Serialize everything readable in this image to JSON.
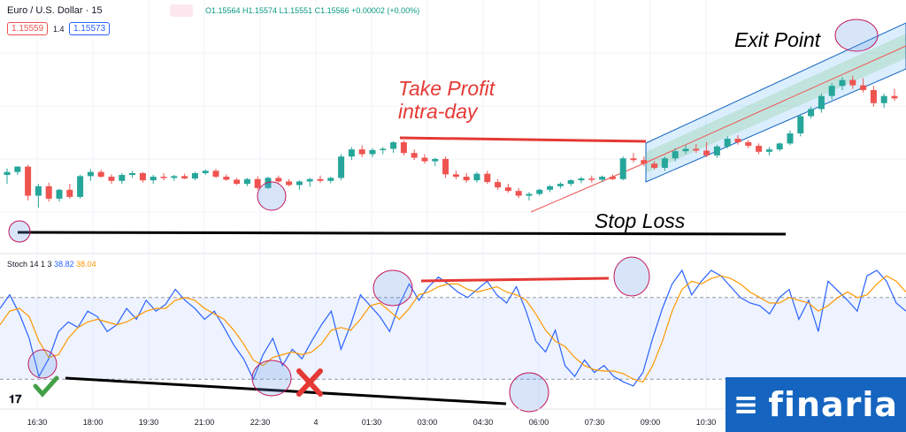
{
  "header": {
    "symbol": "Euro / U.S. Dollar · 15",
    "ohlc": "O1.15564 H1.15574 L1.15551 C1.15566 +0.00002 (+0.00%)",
    "bid": "1.15559",
    "spread": "1.4",
    "ask": "1.15573"
  },
  "stoch_header": {
    "name": "Stoch 14 1 3",
    "k": "38.82",
    "d": "38.04"
  },
  "annotations": {
    "take_profit_1": "Take Profit",
    "take_profit_2": "intra-day",
    "stop_loss": "Stop Loss",
    "exit_point": "Exit Point"
  },
  "colors": {
    "up": "#26a69a",
    "down": "#ef5350",
    "k_line": "#2962ff",
    "d_line": "#ff9800",
    "annotation_red": "#e53935",
    "channel": "#1565c0",
    "brand": "#1565c0"
  },
  "icons": [
    "check-icon",
    "cross-icon",
    "tradingview-logo"
  ],
  "brand": "finaria",
  "chart_data": [
    {
      "type": "candlestick",
      "title": "Euro / U.S. Dollar · 15",
      "ylim": [
        1.1545,
        1.1584
      ],
      "grid": true,
      "candles": [
        [
          1.15575,
          1.15586,
          1.1556,
          1.1558
        ],
        [
          1.1558,
          1.1559,
          1.15575,
          1.15589
        ],
        [
          1.15589,
          1.15592,
          1.15532,
          1.1554
        ],
        [
          1.1554,
          1.1556,
          1.1552,
          1.15556
        ],
        [
          1.15556,
          1.15562,
          1.1553,
          1.15535
        ],
        [
          1.15535,
          1.15552,
          1.1553,
          1.1555
        ],
        [
          1.1555,
          1.1556,
          1.15535,
          1.15538
        ],
        [
          1.15538,
          1.15575,
          1.15535,
          1.15573
        ],
        [
          1.15573,
          1.15585,
          1.15565,
          1.1558
        ],
        [
          1.1558,
          1.15584,
          1.1557,
          1.15572
        ],
        [
          1.15572,
          1.15576,
          1.1556,
          1.15565
        ],
        [
          1.15565,
          1.15578,
          1.1556,
          1.15575
        ],
        [
          1.15575,
          1.15582,
          1.1557,
          1.15578
        ],
        [
          1.15578,
          1.1558,
          1.15562,
          1.15566
        ],
        [
          1.15566,
          1.15575,
          1.1556,
          1.15572
        ],
        [
          1.15572,
          1.15578,
          1.15566,
          1.1557
        ],
        [
          1.1557,
          1.15575,
          1.15565,
          1.15573
        ],
        [
          1.15573,
          1.15577,
          1.15568,
          1.15569
        ],
        [
          1.15569,
          1.1558,
          1.15566,
          1.15578
        ],
        [
          1.15578,
          1.15584,
          1.15575,
          1.15582
        ],
        [
          1.15582,
          1.15585,
          1.1557,
          1.15572
        ],
        [
          1.15572,
          1.15576,
          1.15565,
          1.15567
        ],
        [
          1.15567,
          1.1557,
          1.15558,
          1.1556
        ],
        [
          1.1556,
          1.1557,
          1.15556,
          1.15568
        ],
        [
          1.15568,
          1.15573,
          1.1555,
          1.15553
        ],
        [
          1.15553,
          1.15572,
          1.15551,
          1.1557
        ],
        [
          1.1557,
          1.15574,
          1.15561,
          1.15564
        ],
        [
          1.15564,
          1.15568,
          1.15556,
          1.15558
        ],
        [
          1.15558,
          1.15566,
          1.1555,
          1.15564
        ],
        [
          1.15564,
          1.1557,
          1.15555,
          1.15568
        ],
        [
          1.15568,
          1.15574,
          1.15562,
          1.15565
        ],
        [
          1.15565,
          1.15572,
          1.15561,
          1.1557
        ],
        [
          1.1557,
          1.1561,
          1.15566,
          1.15606
        ],
        [
          1.15606,
          1.15622,
          1.156,
          1.15618
        ],
        [
          1.15618,
          1.15625,
          1.15605,
          1.1561
        ],
        [
          1.1561,
          1.1562,
          1.15605,
          1.15617
        ],
        [
          1.15617,
          1.15622,
          1.1561,
          1.15619
        ],
        [
          1.15619,
          1.15632,
          1.15612,
          1.1563
        ],
        [
          1.1563,
          1.15633,
          1.15608,
          1.15612
        ],
        [
          1.15612,
          1.15618,
          1.156,
          1.15604
        ],
        [
          1.15604,
          1.1561,
          1.15594,
          1.15598
        ],
        [
          1.15598,
          1.15604,
          1.1559,
          1.15602
        ],
        [
          1.15602,
          1.15606,
          1.1557,
          1.15576
        ],
        [
          1.15576,
          1.15582,
          1.15568,
          1.15572
        ],
        [
          1.15572,
          1.15578,
          1.15562,
          1.15566
        ],
        [
          1.15566,
          1.1558,
          1.15562,
          1.15577
        ],
        [
          1.15577,
          1.15582,
          1.1556,
          1.15563
        ],
        [
          1.15563,
          1.15568,
          1.1555,
          1.15554
        ],
        [
          1.15554,
          1.1556,
          1.15545,
          1.15548
        ],
        [
          1.15548,
          1.15553,
          1.15536,
          1.1554
        ],
        [
          1.1554,
          1.15546,
          1.15532,
          1.15543
        ],
        [
          1.15543,
          1.15552,
          1.1554,
          1.1555
        ],
        [
          1.1555,
          1.15558,
          1.15546,
          1.15556
        ],
        [
          1.15556,
          1.15563,
          1.15552,
          1.1556
        ],
        [
          1.1556,
          1.15568,
          1.15556,
          1.15566
        ],
        [
          1.15566,
          1.15572,
          1.15561,
          1.15569
        ],
        [
          1.15569,
          1.15574,
          1.15562,
          1.15567
        ],
        [
          1.15567,
          1.15574,
          1.15563,
          1.15572
        ],
        [
          1.15572,
          1.15576,
          1.15566,
          1.15568
        ],
        [
          1.15568,
          1.15606,
          1.15566,
          1.15603
        ],
        [
          1.15603,
          1.15612,
          1.15596,
          1.156
        ],
        [
          1.156,
          1.15606,
          1.1559,
          1.15594
        ],
        [
          1.15594,
          1.15598,
          1.15584,
          1.15587
        ],
        [
          1.15587,
          1.15606,
          1.15582,
          1.15603
        ],
        [
          1.15603,
          1.1562,
          1.15598,
          1.15615
        ],
        [
          1.15615,
          1.15625,
          1.1561,
          1.15619
        ],
        [
          1.15619,
          1.15627,
          1.15612,
          1.15616
        ],
        [
          1.15616,
          1.1563,
          1.15605,
          1.15608
        ],
        [
          1.15608,
          1.15626,
          1.15604,
          1.15623
        ],
        [
          1.15623,
          1.1564,
          1.1562,
          1.15636
        ],
        [
          1.15636,
          1.15642,
          1.15626,
          1.1563
        ],
        [
          1.1563,
          1.15634,
          1.1562,
          1.15624
        ],
        [
          1.15624,
          1.15628,
          1.1561,
          1.15614
        ],
        [
          1.15614,
          1.15622,
          1.15608,
          1.15618
        ],
        [
          1.15618,
          1.1563,
          1.15615,
          1.15628
        ],
        [
          1.15628,
          1.1565,
          1.15625,
          1.15645
        ],
        [
          1.15645,
          1.15678,
          1.1564,
          1.15674
        ],
        [
          1.15674,
          1.1569,
          1.1567,
          1.15686
        ],
        [
          1.15686,
          1.15712,
          1.1568,
          1.15708
        ],
        [
          1.15708,
          1.1573,
          1.15702,
          1.15725
        ],
        [
          1.15725,
          1.1574,
          1.15718,
          1.15735
        ],
        [
          1.15735,
          1.15742,
          1.1572,
          1.15726
        ],
        [
          1.15726,
          1.15738,
          1.15714,
          1.15718
        ],
        [
          1.15718,
          1.15725,
          1.1569,
          1.15696
        ],
        [
          1.15696,
          1.15712,
          1.15688,
          1.15708
        ],
        [
          1.15708,
          1.1572,
          1.157,
          1.15704
        ]
      ]
    },
    {
      "type": "line",
      "title": "Stoch 14 1 3",
      "ylim": [
        0,
        100
      ],
      "bands": [
        20,
        80
      ],
      "series": [
        {
          "name": "%K",
          "values": [
            72,
            82,
            68,
            50,
            22,
            35,
            55,
            62,
            58,
            70,
            66,
            55,
            60,
            72,
            64,
            78,
            70,
            75,
            86,
            78,
            72,
            64,
            70,
            58,
            45,
            35,
            20,
            38,
            50,
            30,
            42,
            35,
            48,
            60,
            70,
            42,
            60,
            82,
            74,
            66,
            55,
            75,
            90,
            78,
            88,
            95,
            90,
            84,
            80,
            86,
            92,
            82,
            76,
            88,
            70,
            48,
            40,
            56,
            30,
            22,
            34,
            25,
            30,
            22,
            18,
            15,
            25,
            50,
            72,
            90,
            100,
            82,
            92,
            100,
            96,
            88,
            80,
            76,
            74,
            68,
            80,
            86,
            64,
            78,
            55,
            92,
            85,
            78,
            70,
            96,
            100,
            92,
            76,
            70
          ]
        },
        {
          "name": "%D",
          "values": [
            60,
            70,
            72,
            66,
            48,
            36,
            38,
            50,
            58,
            62,
            64,
            62,
            60,
            62,
            66,
            70,
            72,
            72,
            78,
            80,
            78,
            72,
            68,
            64,
            56,
            46,
            34,
            30,
            36,
            38,
            40,
            38,
            40,
            46,
            56,
            58,
            56,
            64,
            74,
            76,
            70,
            64,
            72,
            82,
            84,
            88,
            90,
            90,
            86,
            84,
            86,
            88,
            84,
            82,
            78,
            68,
            56,
            48,
            44,
            36,
            30,
            27,
            26,
            26,
            24,
            20,
            18,
            30,
            48,
            70,
            86,
            92,
            90,
            94,
            96,
            94,
            90,
            84,
            80,
            76,
            76,
            80,
            78,
            76,
            70,
            74,
            80,
            84,
            80,
            82,
            90,
            96,
            92,
            84
          ]
        }
      ]
    }
  ],
  "x_ticks": [
    "16:30",
    "18:00",
    "19:30",
    "21:00",
    "22:30",
    "4",
    "01:30",
    "03:00",
    "04:30",
    "06:00",
    "07:30",
    "09:00",
    "10:30"
  ]
}
